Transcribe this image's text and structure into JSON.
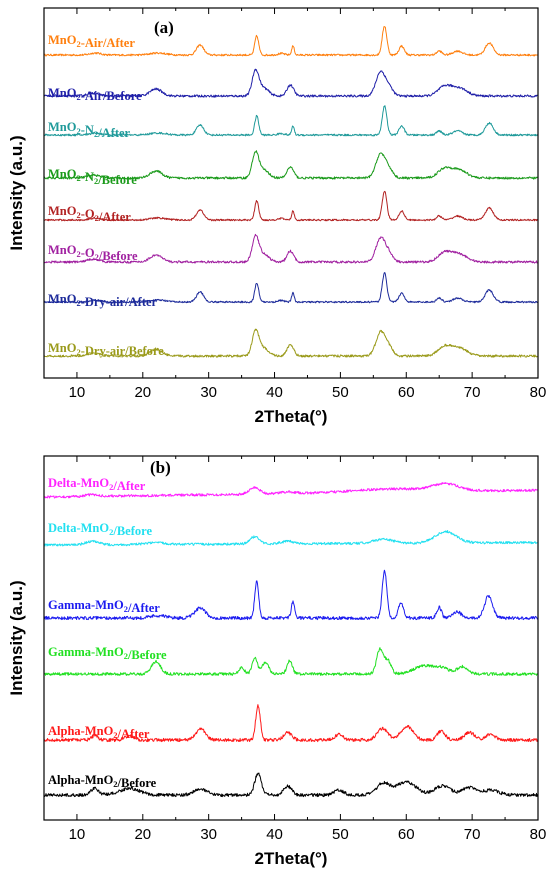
{
  "chart_data": [
    {
      "type": "line",
      "panel_label": "(a)",
      "xlabel": "2Theta(°)",
      "ylabel": "Intensity (a.u.)",
      "xlim": [
        5,
        80
      ],
      "xticks": [
        10,
        20,
        30,
        40,
        50,
        60,
        70,
        80
      ],
      "ytick_labels": "none",
      "grid": false,
      "series": [
        {
          "name": "MnO<sub>2</sub>-Air/After",
          "color": "#ff7f0e",
          "profile": "gamma_after",
          "noise": 0.9
        },
        {
          "name": "MnO<sub>2</sub>-Air/Before",
          "color": "#1f1fa8",
          "profile": "gamma_before",
          "noise": 1.1
        },
        {
          "name": "MnO<sub>2</sub>-N<sub>2</sub>/After",
          "color": "#1f9a9a",
          "profile": "gamma_after",
          "noise": 0.9
        },
        {
          "name": "MnO<sub>2</sub>-N<sub>2</sub>/Before",
          "color": "#1a9a1a",
          "profile": "gamma_before",
          "noise": 1.1
        },
        {
          "name": "MnO<sub>2</sub>-O<sub>2</sub>/After",
          "color": "#b22222",
          "profile": "gamma_after",
          "noise": 0.8
        },
        {
          "name": "MnO<sub>2</sub>-O<sub>2</sub>/Before",
          "color": "#a020a0",
          "profile": "gamma_before",
          "noise": 1.1
        },
        {
          "name": "MnO<sub>2</sub>-Dry-air/After",
          "color": "#1c2a9a",
          "profile": "gamma_after",
          "noise": 0.8
        },
        {
          "name": "MnO<sub>2</sub>-Dry-air/Before",
          "color": "#9a9a1a",
          "profile": "gamma_before",
          "noise": 1.1
        }
      ]
    },
    {
      "type": "line",
      "panel_label": "(b)",
      "xlabel": "2Theta(°)",
      "ylabel": "Intensity (a.u.)",
      "xlim": [
        5,
        80
      ],
      "xticks": [
        10,
        20,
        30,
        40,
        50,
        60,
        70,
        80
      ],
      "ytick_labels": "none",
      "grid": false,
      "series": [
        {
          "name": "Delta-MnO<sub>2</sub>/After",
          "color": "#ff22ff",
          "profile": "delta_after",
          "noise": 1.2
        },
        {
          "name": "Delta-MnO<sub>2</sub>/Before",
          "color": "#22e0f0",
          "profile": "delta_before",
          "noise": 1.2
        },
        {
          "name": "Gamma-MnO<sub>2</sub>/After",
          "color": "#1c1cf0",
          "profile": "gamma_after_b",
          "noise": 1.6
        },
        {
          "name": "Gamma-MnO<sub>2</sub>/Before",
          "color": "#22e022",
          "profile": "gamma_before_b",
          "noise": 1.4
        },
        {
          "name": "Alpha-MnO<sub>2</sub>/After",
          "color": "#ff1a1a",
          "profile": "alpha_after",
          "noise": 1.6
        },
        {
          "name": "Alpha-MnO<sub>2</sub>/Before",
          "color": "#000000",
          "profile": "alpha_before",
          "noise": 1.6
        }
      ]
    }
  ]
}
